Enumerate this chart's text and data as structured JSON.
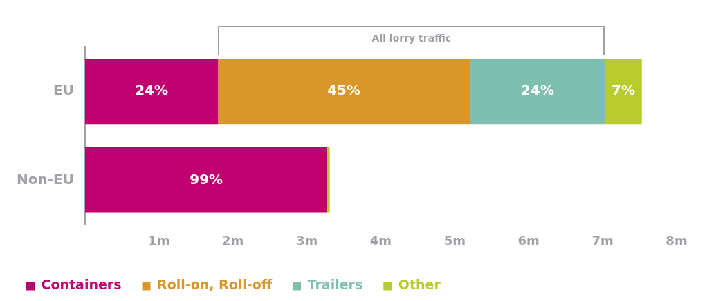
{
  "chart_data": {
    "type": "bar",
    "orientation": "horizontal",
    "stacked": true,
    "categories": [
      "EU",
      "Non-EU"
    ],
    "series": [
      {
        "name": "Containers",
        "color": "#c0006e",
        "values": [
          1.8,
          3.27
        ]
      },
      {
        "name": "Roll-on, Roll-off",
        "color": "#d9962a",
        "values": [
          3.41,
          0
        ]
      },
      {
        "name": "Trailers",
        "color": "#7fbfb0",
        "values": [
          1.82,
          0
        ]
      },
      {
        "name": "Other",
        "color": "#b8cc2e",
        "values": [
          0.5,
          0.04
        ]
      }
    ],
    "xlim": [
      0,
      8
    ],
    "xticks": [
      {
        "value": 1,
        "label": "1m"
      },
      {
        "value": 2,
        "label": "2m"
      },
      {
        "value": 3,
        "label": "3m"
      },
      {
        "value": 4,
        "label": "4m"
      },
      {
        "value": 5,
        "label": "5m"
      },
      {
        "value": 6,
        "label": "6m"
      },
      {
        "value": 7,
        "label": "7m"
      },
      {
        "value": 8,
        "label": "8m"
      }
    ],
    "grid": false,
    "legend": "bottom",
    "annotations": [
      "All lorry traffic",
      {
        "text": "24%",
        "x": 0.9,
        "y": "EU"
      },
      {
        "text": "45%",
        "x": 3.5,
        "y": "EU"
      },
      {
        "text": "24%",
        "x": 6.12,
        "y": "EU"
      },
      {
        "text": "7%",
        "x": 7.28,
        "y": "EU"
      },
      {
        "text": "99%",
        "x": 1.64,
        "y": "Non-EU"
      }
    ]
  }
}
